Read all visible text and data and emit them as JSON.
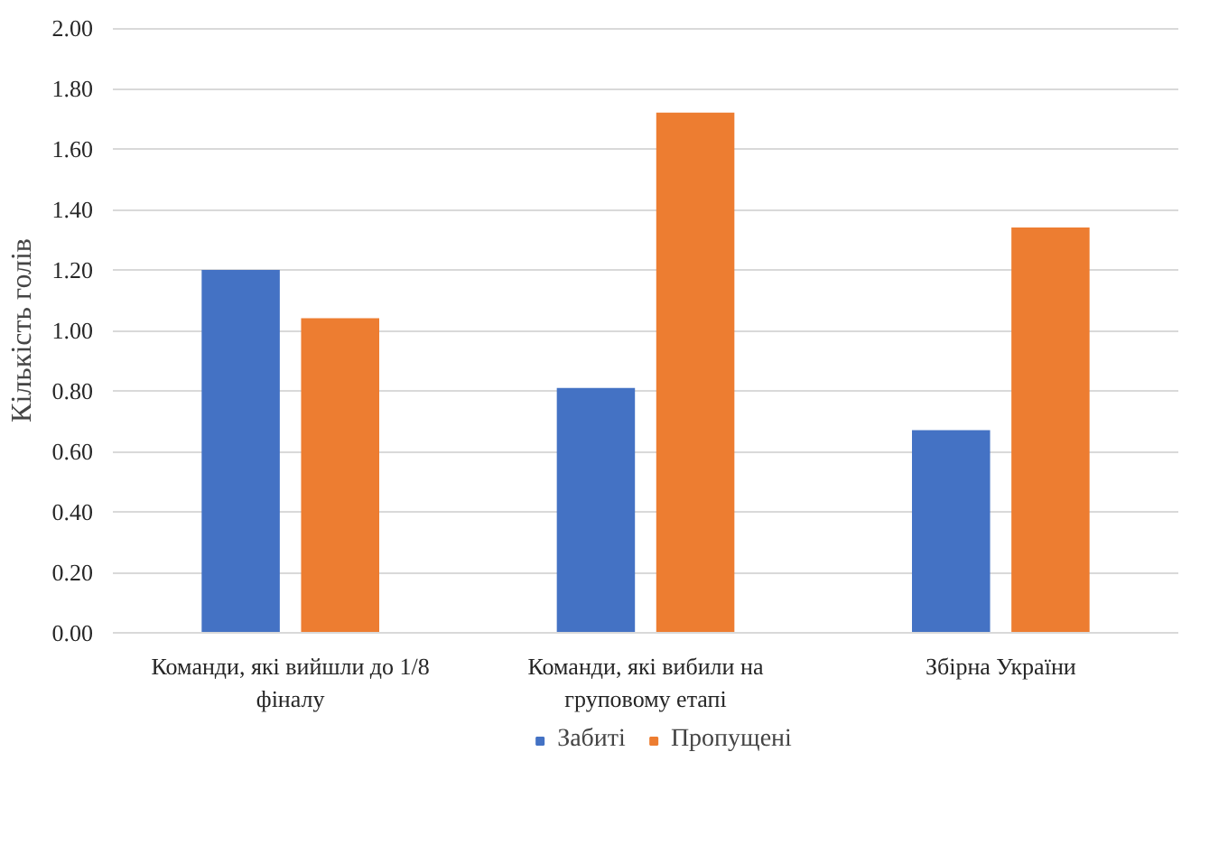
{
  "chart_data": {
    "type": "bar",
    "ylabel": "Кількість голів",
    "categories": [
      "Команди, які вийшли до 1/8 фіналу",
      "Команди, які вибили на груповому етапі",
      "Збірна України"
    ],
    "series": [
      {
        "name": "Забиті",
        "color": "#4472c4",
        "values": [
          1.2,
          0.81,
          0.67
        ]
      },
      {
        "name": "Пропущені",
        "color": "#ed7d31",
        "values": [
          1.04,
          1.72,
          1.34
        ]
      }
    ],
    "ylim": [
      0,
      2
    ],
    "yticks": [
      {
        "value": 0,
        "label": "0.00"
      },
      {
        "value": 0.2,
        "label": "0.20"
      },
      {
        "value": 0.4,
        "label": "0.40"
      },
      {
        "value": 0.6,
        "label": "0.60"
      },
      {
        "value": 0.8,
        "label": "0.80"
      },
      {
        "value": 1,
        "label": "1.00"
      },
      {
        "value": 1.2,
        "label": "1.20"
      },
      {
        "value": 1.4,
        "label": "1.40"
      },
      {
        "value": 1.6,
        "label": "1.60"
      },
      {
        "value": 1.8,
        "label": "1.80"
      },
      {
        "value": 2,
        "label": "2.00"
      }
    ],
    "grid": "y",
    "legend": "bottom"
  }
}
